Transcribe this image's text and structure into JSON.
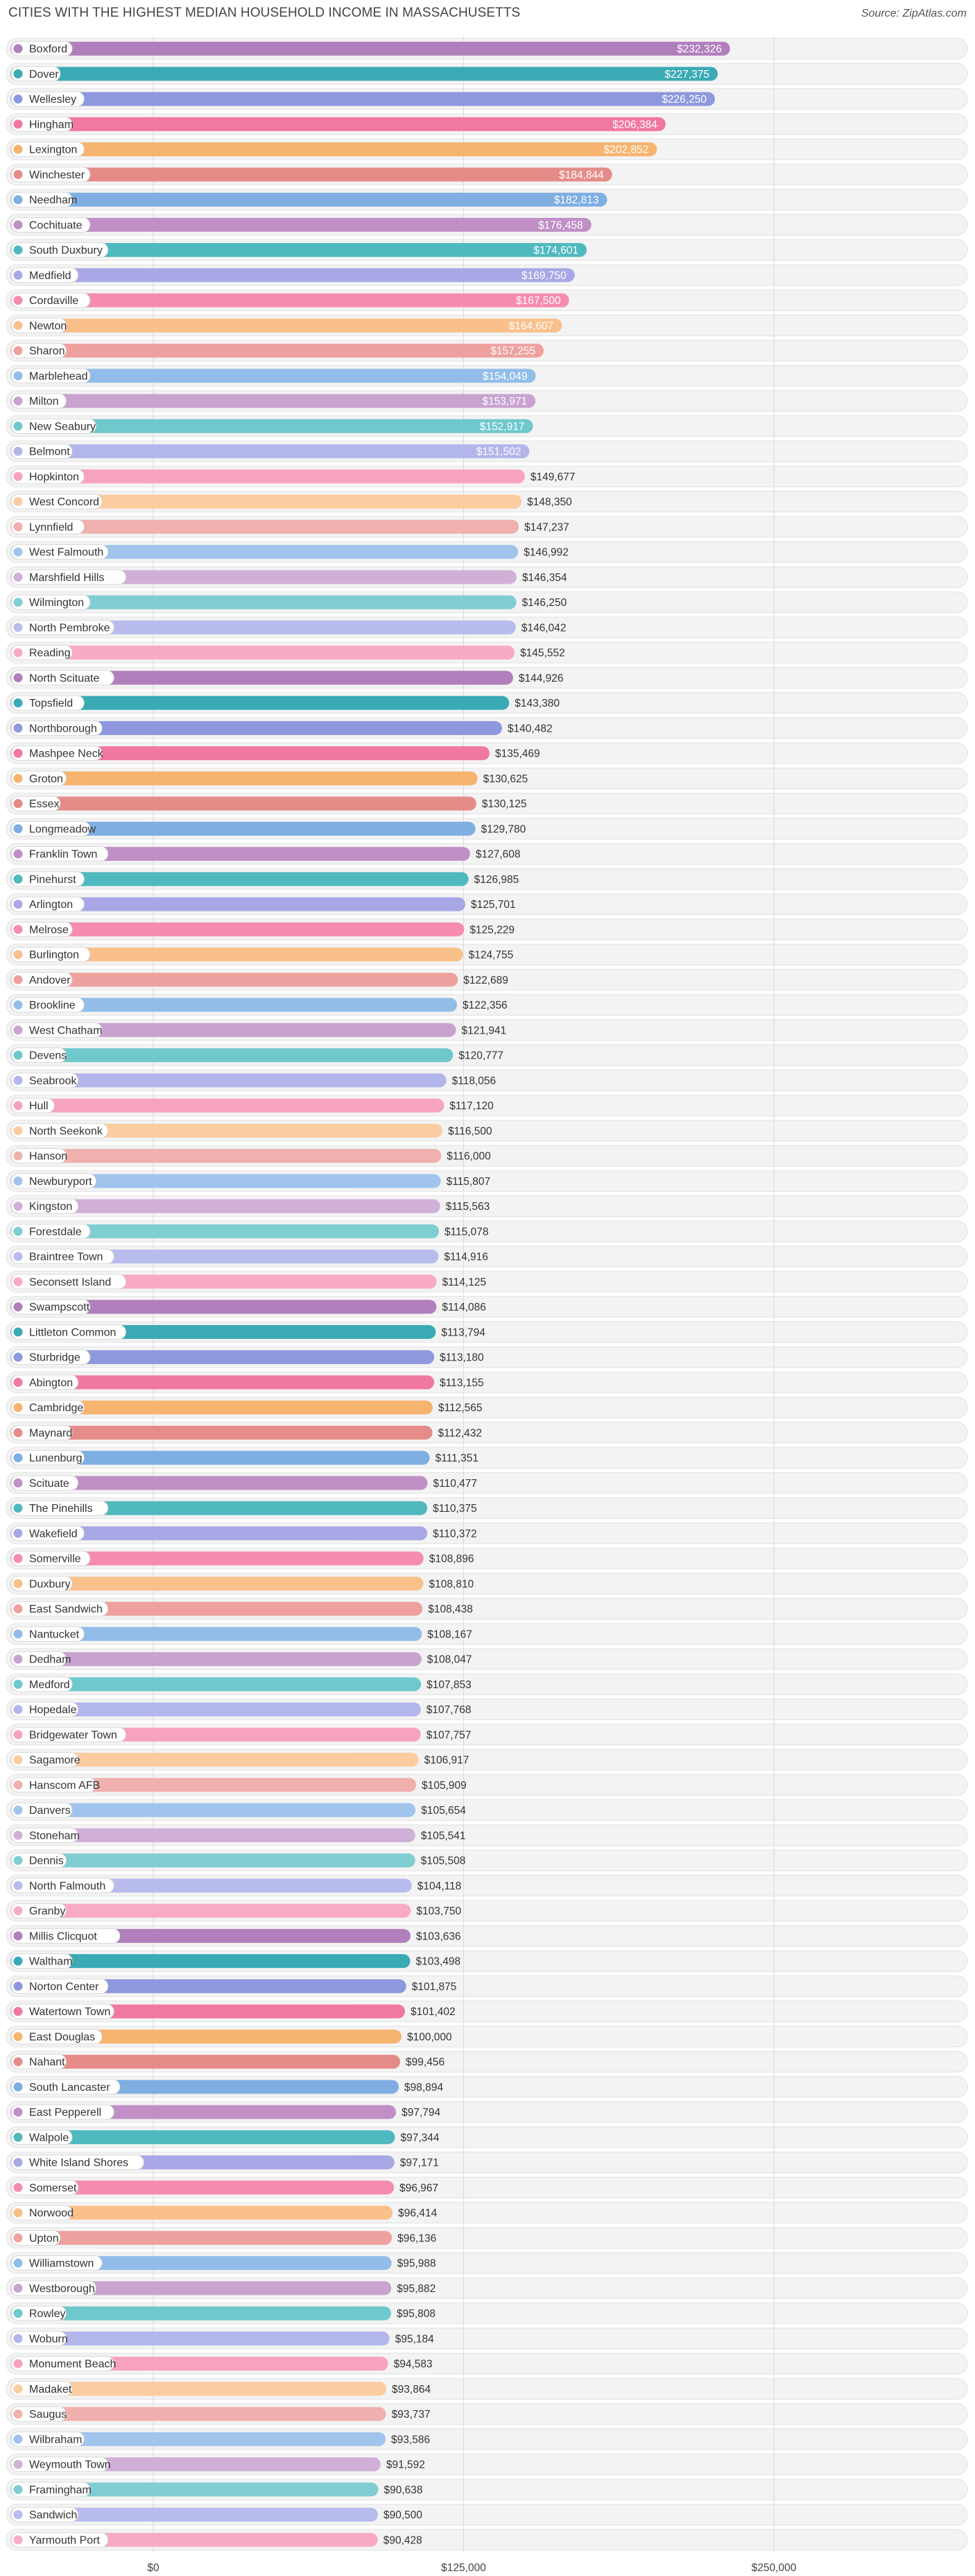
{
  "header": {
    "title": "CITIES WITH THE HIGHEST MEDIAN HOUSEHOLD INCOME IN MASSACHUSETTS",
    "source": "Source: ZipAtlas.com"
  },
  "palette": [
    "#b07fbc",
    "#3aaab5",
    "#8e98de",
    "#f178a0",
    "#f6b46f",
    "#e58c88",
    "#7eaee2",
    "#c08fc6",
    "#4fb9bf",
    "#a8a8e6",
    "#f58cae",
    "#f9c08a",
    "#eea19e",
    "#92bde8",
    "#c9a3cf",
    "#6ec8cc",
    "#b2b6ea",
    "#f7a3bf",
    "#fbcca0",
    "#f0b0ad",
    "#a0c4ec",
    "#d0b0d6",
    "#80cdd2",
    "#b8bcec",
    "#f8aac6"
  ],
  "chart_data": {
    "type": "bar",
    "orientation": "horizontal",
    "title": "CITIES WITH THE HIGHEST MEDIAN HOUSEHOLD INCOME IN MASSACHUSETTS",
    "xlabel": "",
    "ylabel": "",
    "xlim": [
      0,
      250000
    ],
    "x_ticks": [
      0,
      125000,
      250000
    ],
    "x_tick_labels": [
      "$0",
      "$125,000",
      "$250,000"
    ],
    "grid": true,
    "categories": [
      "Boxford",
      "Dover",
      "Wellesley",
      "Hingham",
      "Lexington",
      "Winchester",
      "Needham",
      "Cochituate",
      "South Duxbury",
      "Medfield",
      "Cordaville",
      "Newton",
      "Sharon",
      "Marblehead",
      "Milton",
      "New Seabury",
      "Belmont",
      "Hopkinton",
      "West Concord",
      "Lynnfield",
      "West Falmouth",
      "Marshfield Hills",
      "Wilmington",
      "North Pembroke",
      "Reading",
      "North Scituate",
      "Topsfield",
      "Northborough",
      "Mashpee Neck",
      "Groton",
      "Essex",
      "Longmeadow",
      "Franklin Town",
      "Pinehurst",
      "Arlington",
      "Melrose",
      "Burlington",
      "Andover",
      "Brookline",
      "West Chatham",
      "Devens",
      "Seabrook",
      "Hull",
      "North Seekonk",
      "Hanson",
      "Newburyport",
      "Kingston",
      "Forestdale",
      "Braintree Town",
      "Seconsett Island",
      "Swampscott",
      "Littleton Common",
      "Sturbridge",
      "Abington",
      "Cambridge",
      "Maynard",
      "Lunenburg",
      "Scituate",
      "The Pinehills",
      "Wakefield",
      "Somerville",
      "Duxbury",
      "East Sandwich",
      "Nantucket",
      "Dedham",
      "Medford",
      "Hopedale",
      "Bridgewater Town",
      "Sagamore",
      "Hanscom AFB",
      "Danvers",
      "Stoneham",
      "Dennis",
      "North Falmouth",
      "Granby",
      "Millis Clicquot",
      "Waltham",
      "Norton Center",
      "Watertown Town",
      "East Douglas",
      "Nahant",
      "South Lancaster",
      "East Pepperell",
      "Walpole",
      "White Island Shores",
      "Somerset",
      "Norwood",
      "Upton",
      "Williamstown",
      "Westborough",
      "Rowley",
      "Woburn",
      "Monument Beach",
      "Madaket",
      "Saugus",
      "Wilbraham",
      "Weymouth Town",
      "Framingham",
      "Sandwich",
      "Yarmouth Port"
    ],
    "values": [
      232326,
      227375,
      226250,
      206384,
      202852,
      184844,
      182813,
      176458,
      174601,
      169750,
      167500,
      164607,
      157255,
      154049,
      153971,
      152917,
      151502,
      149677,
      148350,
      147237,
      146992,
      146354,
      146250,
      146042,
      145552,
      144926,
      143380,
      140482,
      135469,
      130625,
      130125,
      129780,
      127608,
      126985,
      125701,
      125229,
      124755,
      122689,
      122356,
      121941,
      120777,
      118056,
      117120,
      116500,
      116000,
      115807,
      115563,
      115078,
      114916,
      114125,
      114086,
      113794,
      113180,
      113155,
      112565,
      112432,
      111351,
      110477,
      110375,
      110372,
      108896,
      108810,
      108438,
      108167,
      108047,
      107853,
      107768,
      107757,
      106917,
      105909,
      105654,
      105541,
      105508,
      104118,
      103750,
      103636,
      103498,
      101875,
      101402,
      100000,
      99456,
      98894,
      97794,
      97344,
      97171,
      96967,
      96414,
      96136,
      95988,
      95882,
      95808,
      95184,
      94583,
      93864,
      93737,
      93586,
      91592,
      90638,
      90500,
      90428
    ],
    "value_labels": [
      "$232,326",
      "$227,375",
      "$226,250",
      "$206,384",
      "$202,852",
      "$184,844",
      "$182,813",
      "$176,458",
      "$174,601",
      "$169,750",
      "$167,500",
      "$164,607",
      "$157,255",
      "$154,049",
      "$153,971",
      "$152,917",
      "$151,502",
      "$149,677",
      "$148,350",
      "$147,237",
      "$146,992",
      "$146,354",
      "$146,250",
      "$146,042",
      "$145,552",
      "$144,926",
      "$143,380",
      "$140,482",
      "$135,469",
      "$130,625",
      "$130,125",
      "$129,780",
      "$127,608",
      "$126,985",
      "$125,701",
      "$125,229",
      "$124,755",
      "$122,689",
      "$122,356",
      "$121,941",
      "$120,777",
      "$118,056",
      "$117,120",
      "$116,500",
      "$116,000",
      "$115,807",
      "$115,563",
      "$115,078",
      "$114,916",
      "$114,125",
      "$114,086",
      "$113,794",
      "$113,180",
      "$113,155",
      "$112,565",
      "$112,432",
      "$111,351",
      "$110,477",
      "$110,375",
      "$110,372",
      "$108,896",
      "$108,810",
      "$108,438",
      "$108,167",
      "$108,047",
      "$107,853",
      "$107,768",
      "$107,757",
      "$106,917",
      "$105,909",
      "$105,654",
      "$105,541",
      "$105,508",
      "$104,118",
      "$103,750",
      "$103,636",
      "$103,498",
      "$101,875",
      "$101,402",
      "$100,000",
      "$99,456",
      "$98,894",
      "$97,794",
      "$97,344",
      "$97,171",
      "$96,967",
      "$96,414",
      "$96,136",
      "$95,988",
      "$95,882",
      "$95,808",
      "$95,184",
      "$94,583",
      "$93,864",
      "$93,737",
      "$93,586",
      "$91,592",
      "$90,638",
      "$90,500",
      "$90,428"
    ]
  }
}
